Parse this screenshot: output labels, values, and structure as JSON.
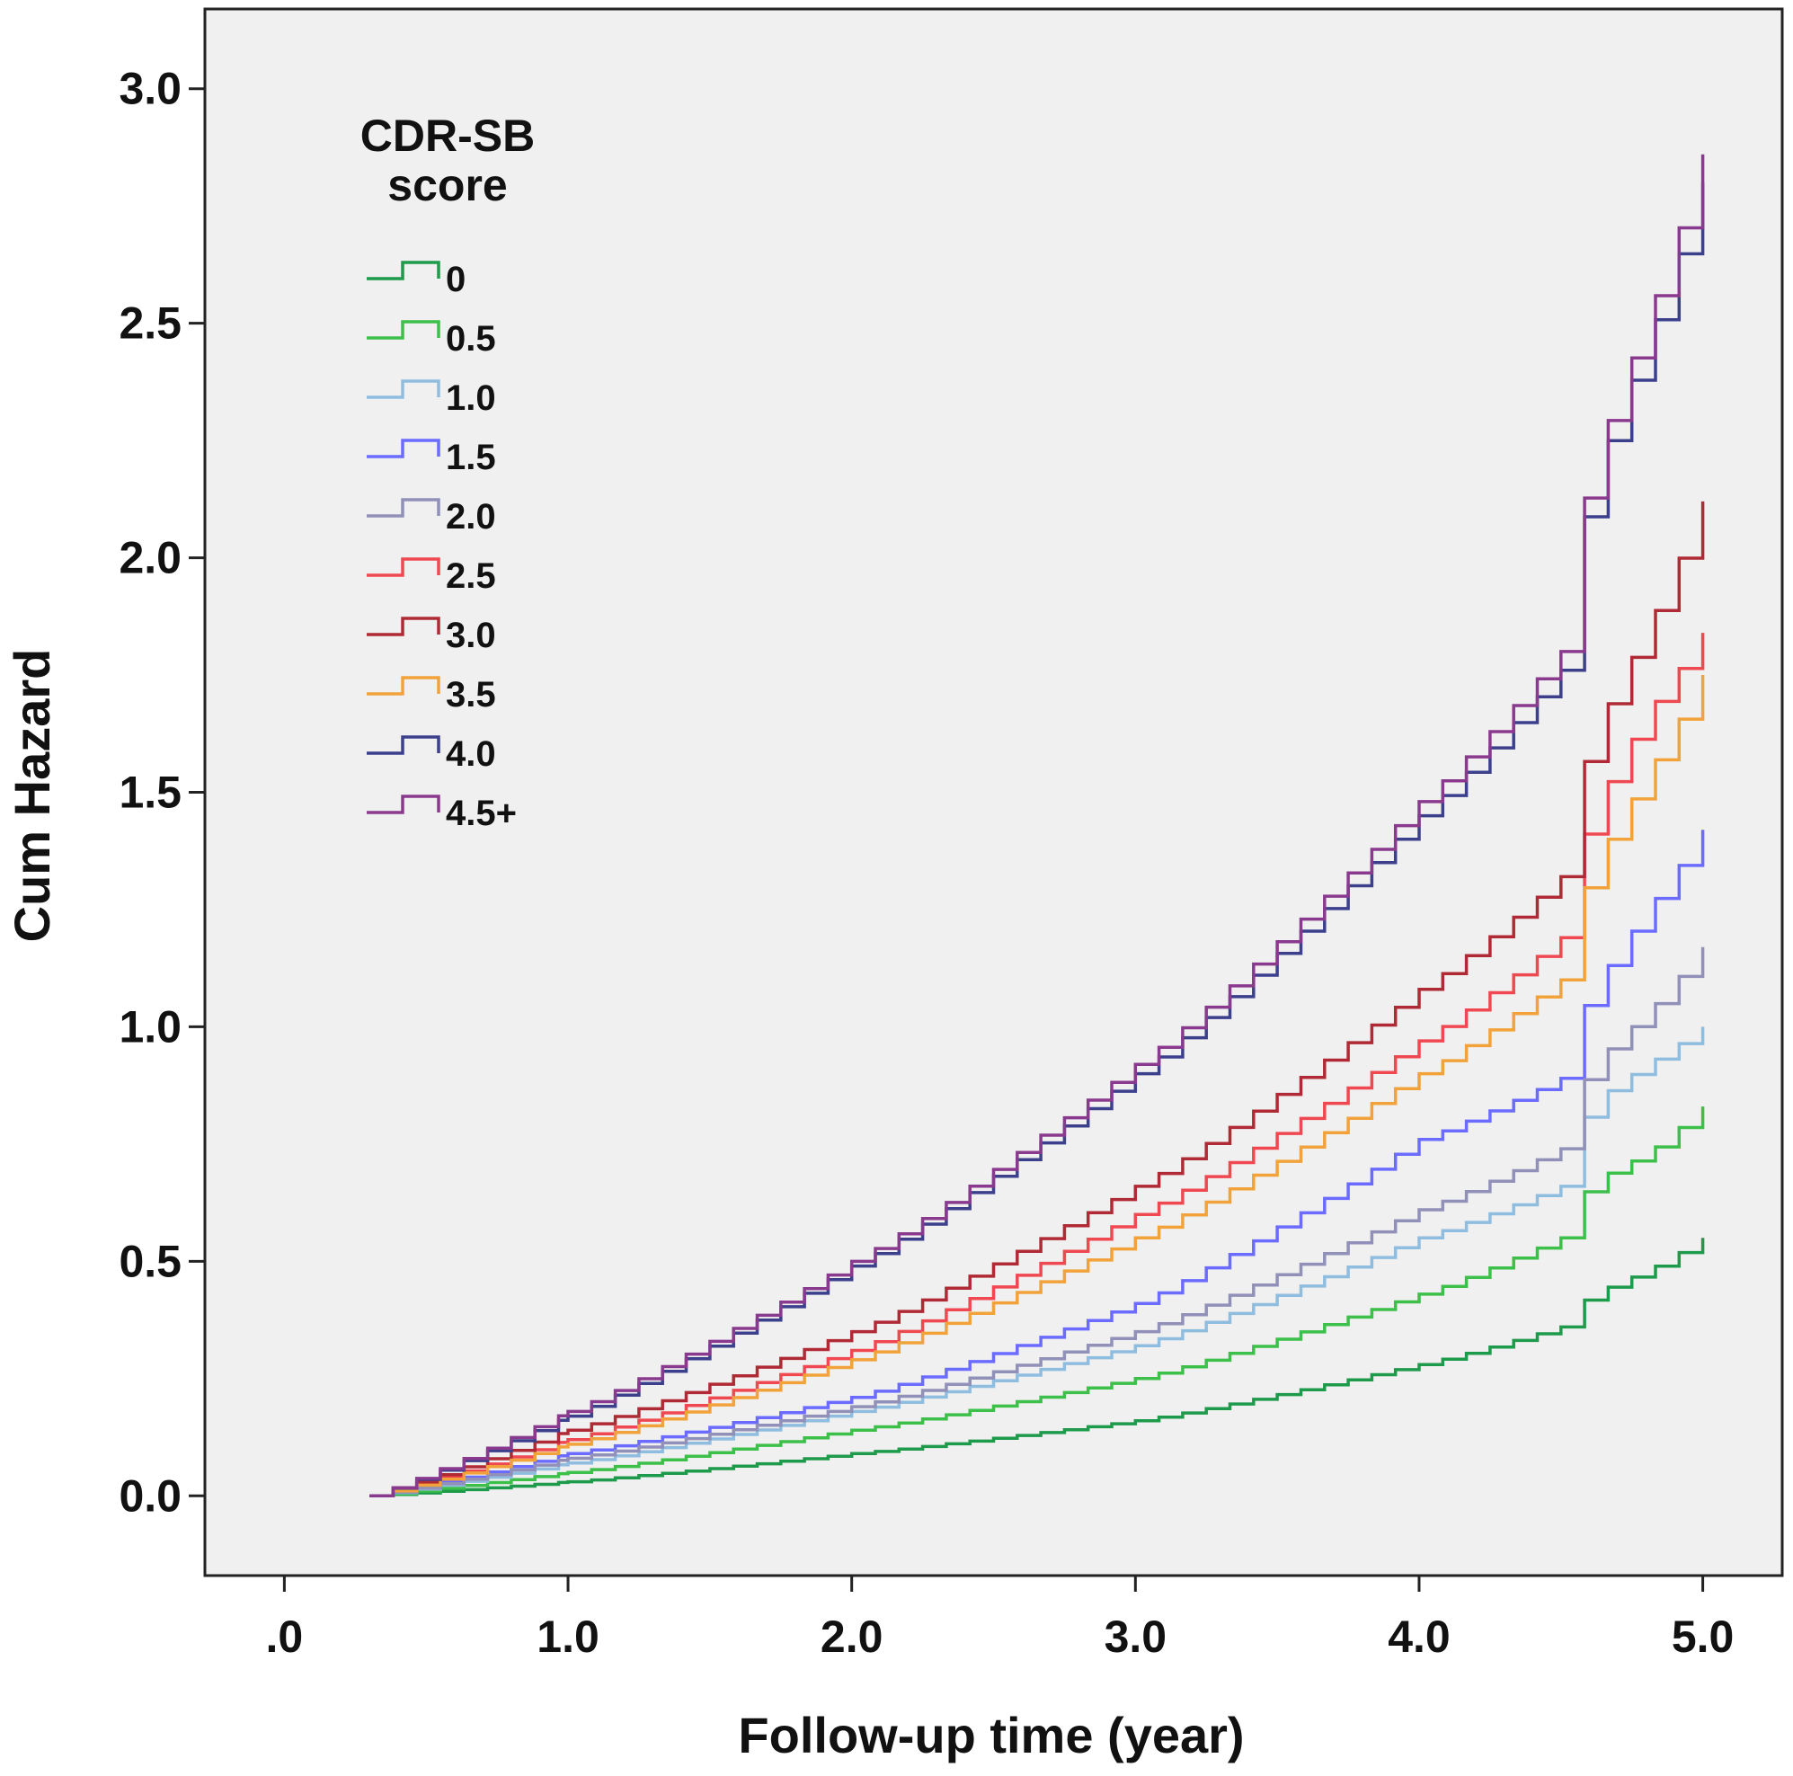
{
  "chart_data": {
    "type": "line",
    "step": true,
    "title": "",
    "xlabel": "Follow-up time (year)",
    "ylabel": "Cum Hazard",
    "xlim": [
      -0.28,
      5.28
    ],
    "ylim": [
      -0.17,
      3.17
    ],
    "xticks": [
      0,
      1,
      2,
      3,
      4,
      5
    ],
    "xtick_labels": [
      ".0",
      "1.0",
      "2.0",
      "3.0",
      "4.0",
      "5.0"
    ],
    "yticks": [
      0,
      0.5,
      1,
      1.5,
      2,
      2.5,
      3
    ],
    "ytick_labels": [
      "0.0",
      "0.5",
      "1.0",
      "1.5",
      "2.0",
      "2.5",
      "3.0"
    ],
    "plot_background": "#f0f0f0",
    "legend": {
      "title": "CDR-SB score",
      "title_lines": [
        "CDR-SB",
        "score"
      ],
      "position": "top-left"
    },
    "x": [
      0.3,
      1.0,
      2.0,
      3.0,
      4.0,
      4.5,
      4.6,
      4.8,
      5.0
    ],
    "series": [
      {
        "name": "0",
        "color": "#1e9a4b",
        "values": [
          0,
          0.03,
          0.09,
          0.16,
          0.28,
          0.36,
          0.43,
          0.48,
          0.55
        ]
      },
      {
        "name": "0.5",
        "color": "#3cc04a",
        "values": [
          0,
          0.05,
          0.14,
          0.25,
          0.43,
          0.55,
          0.67,
          0.73,
          0.83
        ]
      },
      {
        "name": "1.0",
        "color": "#8fbde0",
        "values": [
          0,
          0.07,
          0.18,
          0.32,
          0.55,
          0.66,
          0.84,
          0.92,
          1.0
        ]
      },
      {
        "name": "1.5",
        "color": "#6b6bff",
        "values": [
          0,
          0.09,
          0.21,
          0.41,
          0.76,
          0.89,
          1.08,
          1.25,
          1.42
        ]
      },
      {
        "name": "2.0",
        "color": "#9090b8",
        "values": [
          0,
          0.08,
          0.19,
          0.35,
          0.61,
          0.74,
          0.92,
          1.03,
          1.17
        ]
      },
      {
        "name": "2.5",
        "color": "#f04850",
        "values": [
          0,
          0.12,
          0.31,
          0.6,
          0.97,
          1.19,
          1.46,
          1.67,
          1.84
        ]
      },
      {
        "name": "3.0",
        "color": "#b02a35",
        "values": [
          0,
          0.14,
          0.35,
          0.66,
          1.08,
          1.32,
          1.62,
          1.85,
          2.12
        ]
      },
      {
        "name": "3.5",
        "color": "#f2a23a",
        "values": [
          0,
          0.11,
          0.29,
          0.55,
          0.9,
          1.1,
          1.34,
          1.54,
          1.75
        ]
      },
      {
        "name": "4.0",
        "color": "#3b3f8c",
        "values": [
          0,
          0.17,
          0.49,
          0.9,
          1.45,
          1.76,
          2.16,
          2.46,
          2.8
        ]
      },
      {
        "name": "4.5+",
        "color": "#8a3a8e",
        "values": [
          0,
          0.18,
          0.5,
          0.92,
          1.48,
          1.8,
          2.2,
          2.51,
          2.86
        ]
      }
    ]
  }
}
